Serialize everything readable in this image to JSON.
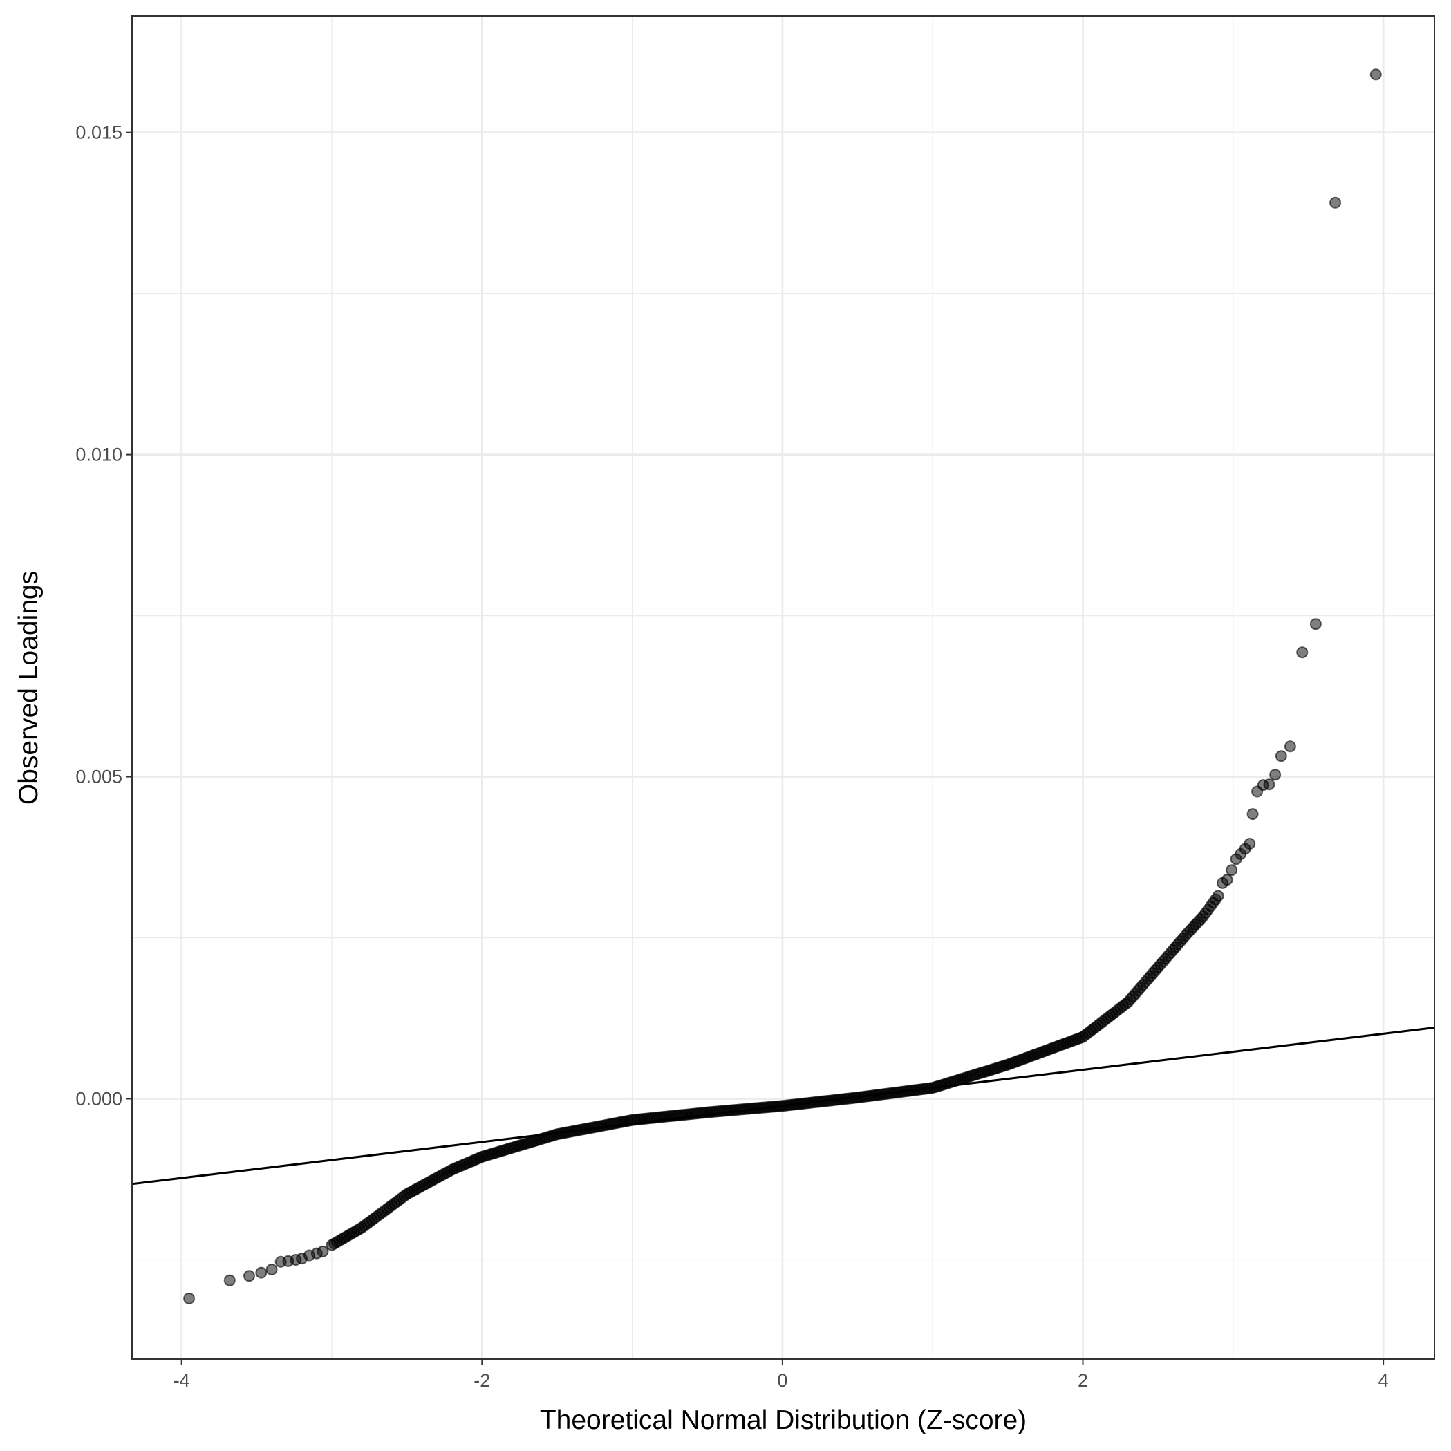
{
  "chart_data": {
    "type": "scatter",
    "title": "",
    "xlabel": "Theoretical Normal Distribution (Z-score)",
    "ylabel": "Observed Loadings",
    "xlim": [
      -4.33,
      4.34
    ],
    "ylim": [
      -0.00404,
      0.01681
    ],
    "x_ticks": [
      -4,
      -2,
      0,
      2,
      4
    ],
    "x_tick_labels": [
      "-4",
      "-2",
      "0",
      "2",
      "4"
    ],
    "y_ticks": [
      0,
      0.005,
      0.01,
      0.015
    ],
    "y_tick_labels": [
      "0.000",
      "0.005",
      "0.010",
      "0.015"
    ],
    "grid": true,
    "point_color": "#000000",
    "point_alpha": 0.5,
    "reference_line": {
      "slope": 0.00028,
      "intercept": -0.00011,
      "color": "#000000"
    },
    "quantile_curve": [
      [
        -3.0,
        -0.00227
      ],
      [
        -2.8,
        -0.002
      ],
      [
        -2.5,
        -0.00148
      ],
      [
        -2.2,
        -0.0011
      ],
      [
        -2.0,
        -0.0009
      ],
      [
        -1.5,
        -0.00055
      ],
      [
        -1.0,
        -0.00033
      ],
      [
        -0.5,
        -0.00021
      ],
      [
        0.0,
        -0.00011
      ],
      [
        0.5,
        2e-05
      ],
      [
        1.0,
        0.00017
      ],
      [
        1.5,
        0.00053
      ],
      [
        2.0,
        0.00096
      ],
      [
        2.3,
        0.0015
      ],
      [
        2.5,
        0.00204
      ],
      [
        2.7,
        0.00258
      ],
      [
        2.8,
        0.00283
      ],
      [
        2.9,
        0.00315
      ]
    ],
    "tail_points": [
      [
        -3.95,
        -0.0031
      ],
      [
        -3.68,
        -0.00282
      ],
      [
        -3.55,
        -0.00275
      ],
      [
        -3.47,
        -0.0027
      ],
      [
        -3.4,
        -0.00265
      ],
      [
        -3.34,
        -0.00253
      ],
      [
        -3.29,
        -0.00252
      ],
      [
        -3.24,
        -0.0025
      ],
      [
        -3.2,
        -0.00248
      ],
      [
        -3.15,
        -0.00243
      ],
      [
        -3.1,
        -0.0024
      ],
      [
        -3.06,
        -0.00237
      ],
      [
        2.93,
        0.00335
      ],
      [
        2.96,
        0.0034
      ],
      [
        2.99,
        0.00355
      ],
      [
        3.02,
        0.00372
      ],
      [
        3.05,
        0.0038
      ],
      [
        3.08,
        0.00388
      ],
      [
        3.11,
        0.00396
      ],
      [
        3.13,
        0.00442
      ],
      [
        3.16,
        0.00477
      ],
      [
        3.2,
        0.00487
      ],
      [
        3.24,
        0.00488
      ],
      [
        3.28,
        0.00503
      ],
      [
        3.32,
        0.00532
      ],
      [
        3.38,
        0.00547
      ],
      [
        3.46,
        0.00693
      ],
      [
        3.55,
        0.00737
      ],
      [
        3.68,
        0.01391
      ],
      [
        3.95,
        0.0159
      ]
    ]
  }
}
